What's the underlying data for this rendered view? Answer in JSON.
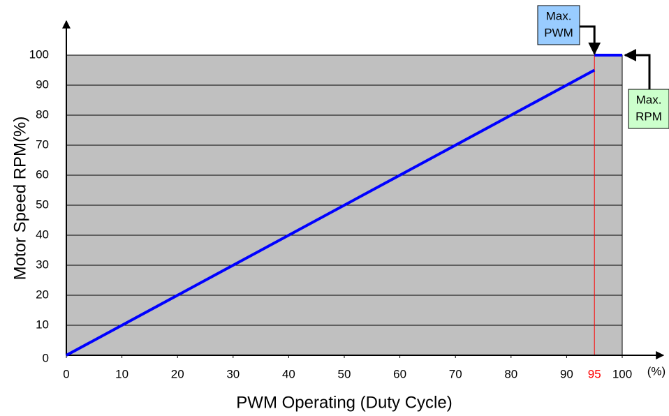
{
  "chart_data": {
    "type": "line",
    "x_label": "PWM Operating (Duty Cycle)",
    "y_label": "Motor Speed RPM(%)",
    "x_unit": "(%)",
    "xlim": [
      0,
      100
    ],
    "ylim": [
      0,
      100
    ],
    "xticks": [
      0,
      10,
      20,
      30,
      40,
      50,
      60,
      70,
      80,
      90,
      100
    ],
    "yticks": [
      0,
      10,
      20,
      30,
      40,
      50,
      60,
      70,
      80,
      90,
      100
    ],
    "grid": true,
    "background": "#c0c0c0",
    "marker": {
      "value": 95,
      "color": "#ff0000"
    },
    "series": [
      {
        "color": "#0000ff",
        "x": [
          0,
          95,
          95,
          95,
          100
        ],
        "values": [
          0,
          95,
          null,
          100,
          100
        ]
      }
    ],
    "annotations": [
      {
        "lines": [
          "Max.",
          "PWM"
        ],
        "x": 95,
        "y": 100,
        "color": "#99ccff"
      },
      {
        "lines": [
          "Max.",
          "RPM"
        ],
        "x": 100,
        "y": 100,
        "color": "#ccffcc"
      }
    ]
  }
}
